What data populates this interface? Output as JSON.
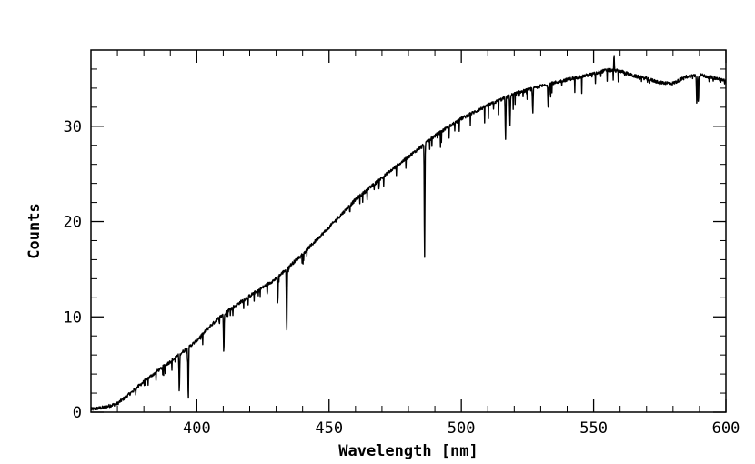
{
  "chart_data": {
    "type": "line",
    "xlabel": "Wavelength [nm]",
    "ylabel": "Counts",
    "xlim": [
      360,
      600
    ],
    "ylim": [
      0,
      38
    ],
    "x_ticks": [
      400,
      450,
      500,
      550,
      600
    ],
    "y_ticks": [
      0,
      10,
      20,
      30
    ],
    "x_minor_step": 10,
    "y_minor_step": 2,
    "grid": false,
    "legend": "none",
    "line_color": "#000000",
    "series": [
      {
        "continuum": {
          "x": [
            360,
            365,
            370,
            375,
            380,
            385,
            390,
            395,
            400,
            405,
            410,
            420,
            430,
            440,
            450,
            460,
            470,
            480,
            490,
            500,
            510,
            520,
            530,
            540,
            550,
            555,
            560,
            565,
            570,
            575,
            580,
            585,
            590,
            595,
            600
          ],
          "y": [
            0.3,
            0.5,
            0.9,
            2.0,
            3.2,
            4.3,
            5.3,
            6.4,
            7.5,
            9.0,
            10.3,
            12.2,
            14.0,
            16.6,
            19.4,
            22.3,
            24.6,
            26.8,
            29.0,
            30.8,
            32.2,
            33.4,
            34.2,
            34.9,
            35.5,
            35.9,
            35.8,
            35.3,
            35.0,
            34.6,
            34.5,
            35.2,
            35.4,
            35.1,
            34.8
          ]
        },
        "lines": [
          {
            "x": 393.4,
            "depth": 4.0
          },
          {
            "x": 396.8,
            "depth": 5.5
          },
          {
            "x": 410.2,
            "depth": 4.3
          },
          {
            "x": 430.6,
            "depth": 2.7
          },
          {
            "x": 434.0,
            "depth": 6.8
          },
          {
            "x": 486.1,
            "depth": 12.0
          },
          {
            "x": 516.7,
            "depth": 4.4
          },
          {
            "x": 518.4,
            "depth": 3.0
          },
          {
            "x": 527.0,
            "depth": 2.6
          },
          {
            "x": 532.8,
            "depth": 2.3
          },
          {
            "x": 589.0,
            "depth": 3.0
          },
          {
            "x": 589.6,
            "depth": 2.8
          }
        ],
        "emission": [
          {
            "x": 557.7,
            "height": 1.6
          }
        ]
      }
    ]
  }
}
